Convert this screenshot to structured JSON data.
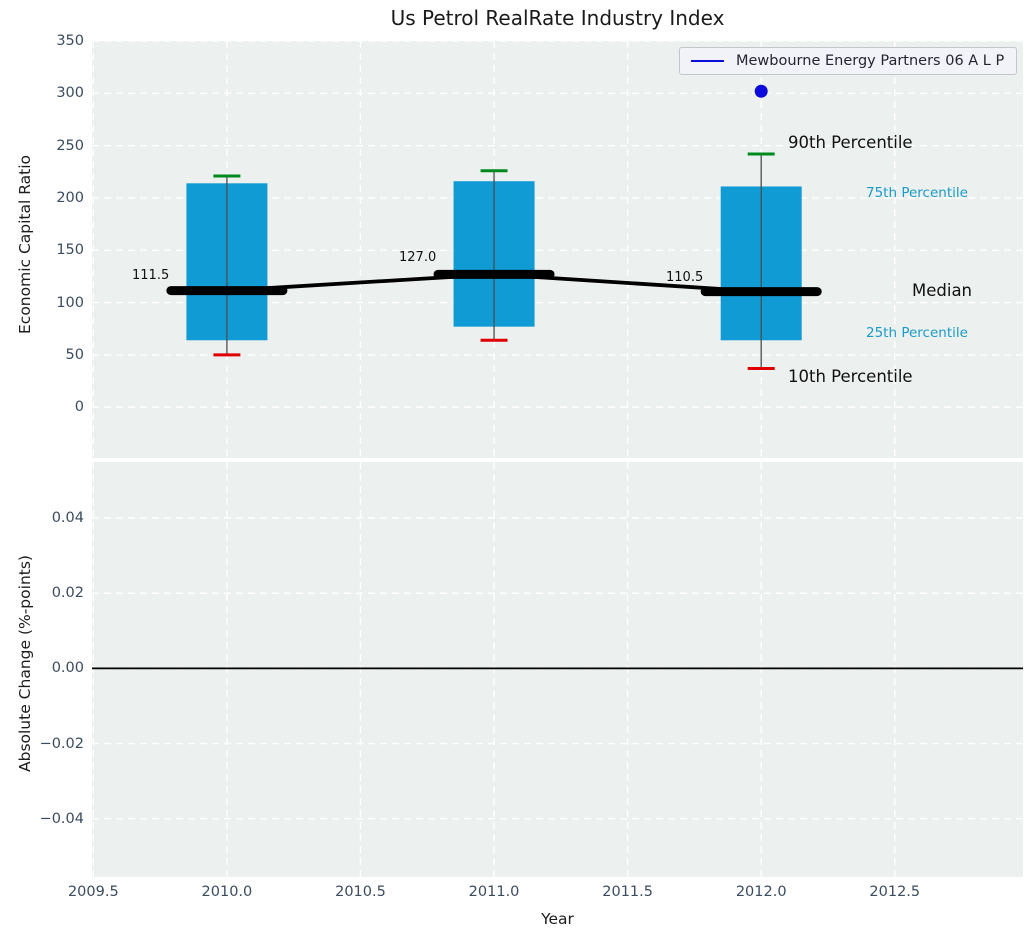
{
  "figure": {
    "title": "Us Petrol RealRate Industry Index",
    "xlabel": "Year",
    "legend_label": "Mewbourne Energy Partners 06 A L P"
  },
  "colors": {
    "panel_bg": "#ecf0ee",
    "grid": "#ffffff",
    "box_fill": "#109bd4",
    "whisker": "#4d4d4d",
    "cap_high": "#008a1e",
    "cap_low": "#e00000",
    "median_line": "#000000",
    "company_blue": "#0b0bdb",
    "tick_text": "#3a4c60",
    "percentile_text": "#1a9bce",
    "zero_line": "#000000"
  },
  "chart_data": [
    {
      "type": "boxplot",
      "title": "Us Petrol RealRate Industry Index",
      "ylabel": "Economic Capital Ratio",
      "ylim": [
        -48.5,
        350
      ],
      "yticks": [
        350,
        300,
        250,
        200,
        150,
        100,
        50,
        0
      ],
      "ytick_labels": [
        "350",
        "300",
        "250",
        "200",
        "150",
        "100",
        "50",
        "0"
      ],
      "xlim": [
        2009.495,
        2012.98
      ],
      "xticks": [
        2009.5,
        2010,
        2010.5,
        2011,
        2011.5,
        2012,
        2012.5
      ],
      "grid": true,
      "legend_position": "upper right",
      "legend_entries": [
        "Mewbourne Energy Partners 06 A L P"
      ],
      "categories": [
        2010,
        2011,
        2012
      ],
      "boxes": [
        {
          "x": 2010,
          "p10": 50,
          "p25": 64,
          "median": 111.5,
          "p75": 214,
          "p90": 221,
          "label": "111.5"
        },
        {
          "x": 2011,
          "p10": 64,
          "p25": 77,
          "median": 127.0,
          "p75": 216,
          "p90": 226,
          "label": "127.0"
        },
        {
          "x": 2012,
          "p10": 37,
          "p25": 64,
          "median": 110.5,
          "p75": 211,
          "p90": 242,
          "label": "110.5"
        }
      ],
      "median_series": {
        "x": [
          2010,
          2011,
          2012
        ],
        "y": [
          111.5,
          127.0,
          110.5
        ]
      },
      "company_series": {
        "name": "Mewbourne Energy Partners 06 A L P",
        "type": "scatter",
        "x": [
          2012
        ],
        "y": [
          302
        ]
      },
      "annotations": {
        "p90": "90th Percentile",
        "p75": "75th Percentile",
        "median": "Median",
        "p25": "25th Percentile",
        "p10": "10th Percentile"
      }
    },
    {
      "type": "line",
      "ylabel": "Absolute Change (%-points)",
      "xlabel": "Year",
      "ylim": [
        -0.0555,
        0.0549
      ],
      "yticks": [
        0.04,
        0.02,
        0,
        -0.02,
        -0.04
      ],
      "ytick_labels": [
        "0.04",
        "0.02",
        "0.00",
        "−0.02",
        "−0.04"
      ],
      "xlim": [
        2009.495,
        2012.98
      ],
      "xticks": [
        2009.5,
        2010,
        2010.5,
        2011,
        2011.5,
        2012,
        2012.5
      ],
      "xtick_labels": [
        "2009.5",
        "2010.0",
        "2010.5",
        "2011.0",
        "2011.5",
        "2012.0",
        "2012.5"
      ],
      "grid": true,
      "zero_line": 0,
      "series": []
    }
  ]
}
